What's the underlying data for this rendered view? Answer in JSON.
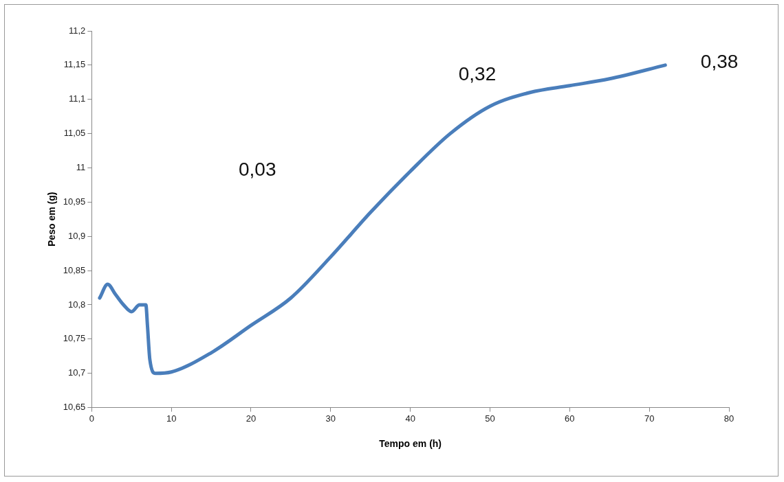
{
  "chart_data": {
    "type": "line",
    "xlabel": "Tempo em (h)",
    "ylabel": "Peso em (g)",
    "x": [
      1,
      2,
      3,
      4,
      5,
      6,
      6.8,
      7,
      7.3,
      8,
      10,
      15,
      20,
      25,
      30,
      35,
      40,
      45,
      50,
      55,
      60,
      65,
      72
    ],
    "series": [
      {
        "color": "#4a7ebb",
        "values": [
          10.81,
          10.83,
          10.815,
          10.8,
          10.79,
          10.8,
          10.8,
          10.77,
          10.72,
          10.7,
          10.702,
          10.73,
          10.77,
          10.81,
          10.87,
          10.935,
          10.995,
          11.05,
          11.09,
          11.11,
          11.12,
          11.13,
          11.15
        ]
      }
    ],
    "xlim": [
      0,
      80
    ],
    "xticks": [
      0,
      10,
      20,
      30,
      40,
      50,
      60,
      70,
      80
    ],
    "ylim": [
      10.65,
      11.2
    ],
    "yticks": [
      {
        "value": 10.65,
        "label": "10,65"
      },
      {
        "value": 10.7,
        "label": "10,7"
      },
      {
        "value": 10.75,
        "label": "10,75"
      },
      {
        "value": 10.8,
        "label": "10,8"
      },
      {
        "value": 10.85,
        "label": "10,85"
      },
      {
        "value": 10.9,
        "label": "10,9"
      },
      {
        "value": 10.95,
        "label": "10,95"
      },
      {
        "value": 11,
        "label": "11"
      },
      {
        "value": 11.05,
        "label": "11,05"
      },
      {
        "value": 11.1,
        "label": "11,1"
      },
      {
        "value": 11.15,
        "label": "11,15"
      },
      {
        "value": 11.2,
        "label": "11,2"
      }
    ],
    "annotations": [
      "0,03",
      "0,32",
      "0,38"
    ],
    "grid": false,
    "legend": false,
    "marker": "none",
    "line_style": "solid"
  }
}
